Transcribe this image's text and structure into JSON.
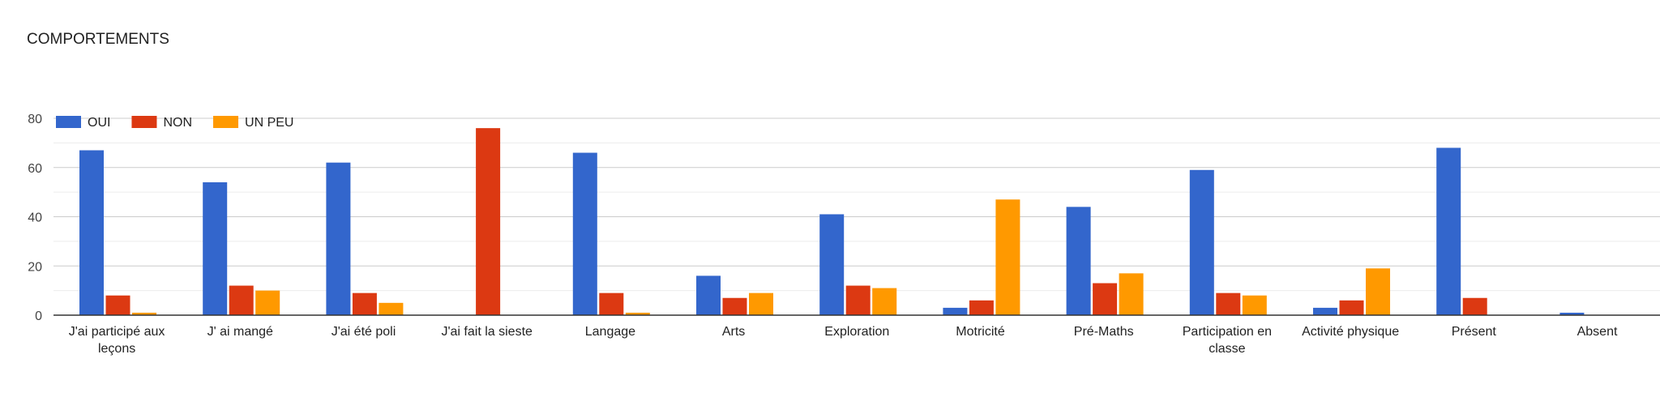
{
  "chart_data": {
    "type": "bar",
    "title": "COMPORTEMENTS",
    "categories": [
      "J'ai participé aux leçons",
      "J' ai mangé",
      "J'ai été poli",
      "J'ai fait la sieste",
      "Langage",
      "Arts",
      "Exploration",
      "Motricité",
      "Pré-Maths",
      "Participation en classe",
      "Activité physique",
      "Présent",
      "Absent"
    ],
    "series": [
      {
        "name": "OUI",
        "color": "#3366cc",
        "values": [
          67,
          54,
          62,
          0,
          66,
          16,
          41,
          3,
          44,
          59,
          3,
          68,
          1
        ]
      },
      {
        "name": "NON",
        "color": "#dc3912",
        "values": [
          8,
          12,
          9,
          76,
          9,
          7,
          12,
          6,
          13,
          9,
          6,
          7,
          0
        ]
      },
      {
        "name": "UN PEU",
        "color": "#ff9900",
        "values": [
          1,
          10,
          5,
          0,
          1,
          9,
          11,
          47,
          17,
          8,
          19,
          0,
          0
        ]
      }
    ],
    "ylim": [
      0,
      80
    ],
    "yticks": [
      0,
      20,
      40,
      60,
      80
    ],
    "grid": true,
    "legend_position": "top-left"
  }
}
